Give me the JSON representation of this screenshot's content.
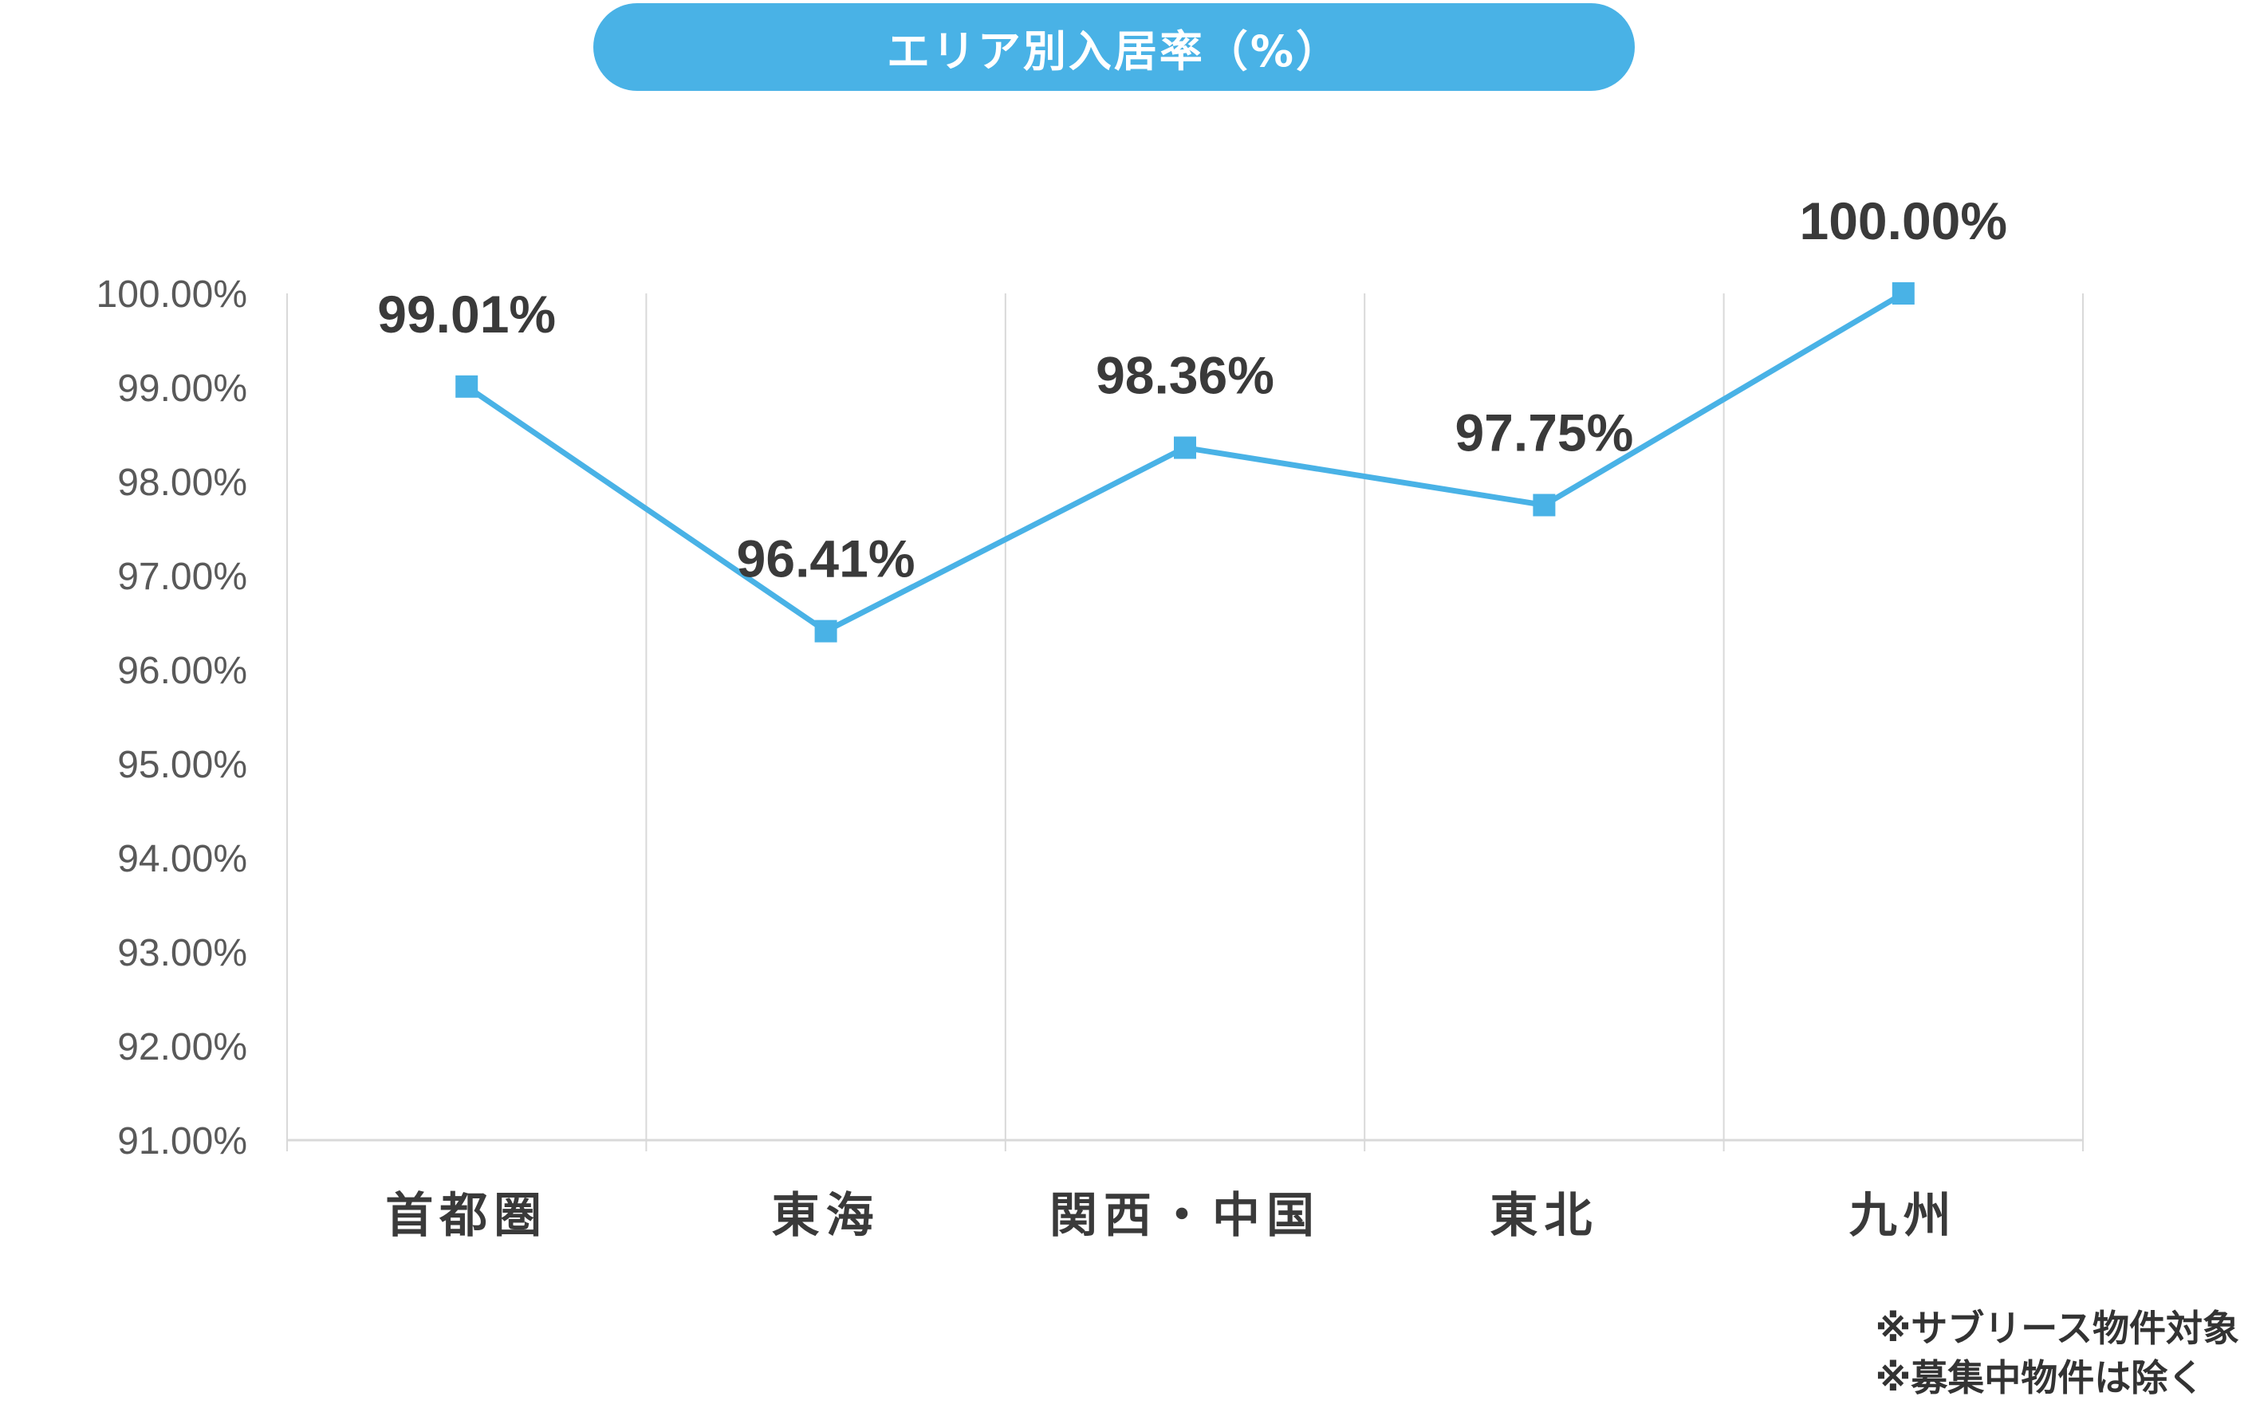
{
  "header": {
    "title": "エリア別入居率（%）"
  },
  "colors": {
    "accent": "#49b2e6",
    "grid": "#d9d9d9",
    "text": "#3a3a3a",
    "axis_text": "#595959"
  },
  "chart_data": {
    "type": "line",
    "title": "エリア別入居率（%）",
    "categories": [
      "首都圏",
      "東海",
      "関西・中国",
      "東北",
      "九州"
    ],
    "series": [
      {
        "values": [
          99.01,
          96.41,
          98.36,
          97.75,
          100.0
        ],
        "data_labels": [
          "99.01%",
          "96.41%",
          "98.36%",
          "97.75%",
          "100.00%"
        ],
        "marker": "square",
        "color": "#49b2e6"
      }
    ],
    "ylim": [
      91,
      100
    ],
    "yticks": [
      100,
      99,
      98,
      97,
      96,
      95,
      94,
      93,
      92,
      91
    ],
    "ytick_labels": [
      "100.00%",
      "99.00%",
      "98.00%",
      "97.00%",
      "96.00%",
      "95.00%",
      "94.00%",
      "93.00%",
      "92.00%",
      "91.00%"
    ],
    "xlabel": "",
    "ylabel": "",
    "grid": "vertical",
    "legend": "none"
  },
  "notes": [
    "※サブリース物件対象",
    "※募集中物件は除く"
  ]
}
